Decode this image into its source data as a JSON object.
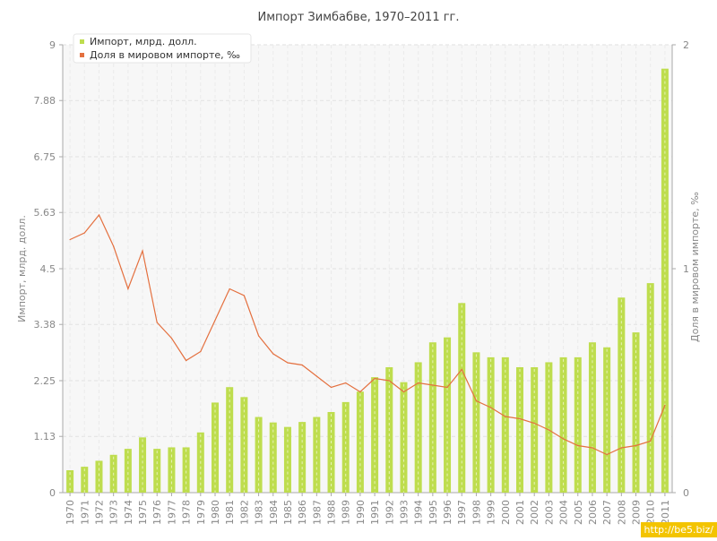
{
  "chart_data": {
    "type": "bar",
    "title": "Импорт Зимбабве, 1970–2011 гг.",
    "ylabel_left": "Импорт, млрд. долл.",
    "ylabel_right": "Доля в мировом импорте, ‰",
    "left_ticks": [
      "0",
      "1.13",
      "2.25",
      "3.38",
      "4.5",
      "5.63",
      "6.75",
      "7.88",
      "9"
    ],
    "right_ticks": [
      "0",
      "1",
      "2"
    ],
    "ylim_left": [
      0,
      9
    ],
    "ylim_right": [
      0,
      2
    ],
    "grid": true,
    "legend_position": "top-left",
    "categories": [
      "1970",
      "1971",
      "1972",
      "1973",
      "1974",
      "1975",
      "1976",
      "1977",
      "1978",
      "1979",
      "1980",
      "1981",
      "1982",
      "1983",
      "1984",
      "1985",
      "1986",
      "1987",
      "1988",
      "1989",
      "1990",
      "1991",
      "1992",
      "1993",
      "1994",
      "1995",
      "1996",
      "1997",
      "1998",
      "1999",
      "2000",
      "2001",
      "2002",
      "2003",
      "2004",
      "2005",
      "2006",
      "2007",
      "2008",
      "2009",
      "2010",
      "2011"
    ],
    "series": [
      {
        "name": "Импорт, млрд. долл.",
        "type": "bar",
        "axis": "left",
        "color": "#bedd4e",
        "values": [
          0.45,
          0.52,
          0.64,
          0.76,
          0.88,
          1.11,
          0.88,
          0.91,
          0.91,
          1.21,
          1.81,
          2.12,
          1.92,
          1.52,
          1.41,
          1.32,
          1.42,
          1.52,
          1.62,
          1.82,
          2.03,
          2.32,
          2.52,
          2.22,
          2.62,
          3.02,
          3.12,
          3.81,
          2.82,
          2.72,
          2.72,
          2.52,
          2.52,
          2.62,
          2.72,
          2.72,
          3.02,
          2.92,
          3.92,
          3.22,
          4.21,
          8.52
        ]
      },
      {
        "name": "Доля в мировом импорте, ‰",
        "type": "line",
        "axis": "right",
        "color": "#e4703f",
        "values": [
          1.13,
          1.16,
          1.24,
          1.1,
          0.91,
          1.08,
          0.76,
          0.69,
          0.59,
          0.63,
          0.77,
          0.91,
          0.88,
          0.7,
          0.62,
          0.58,
          0.57,
          0.52,
          0.47,
          0.49,
          0.45,
          0.51,
          0.5,
          0.45,
          0.49,
          0.48,
          0.47,
          0.55,
          0.41,
          0.38,
          0.34,
          0.33,
          0.31,
          0.28,
          0.24,
          0.21,
          0.2,
          0.17,
          0.2,
          0.21,
          0.23,
          0.39
        ]
      }
    ]
  },
  "watermark": "http://be5.biz/"
}
